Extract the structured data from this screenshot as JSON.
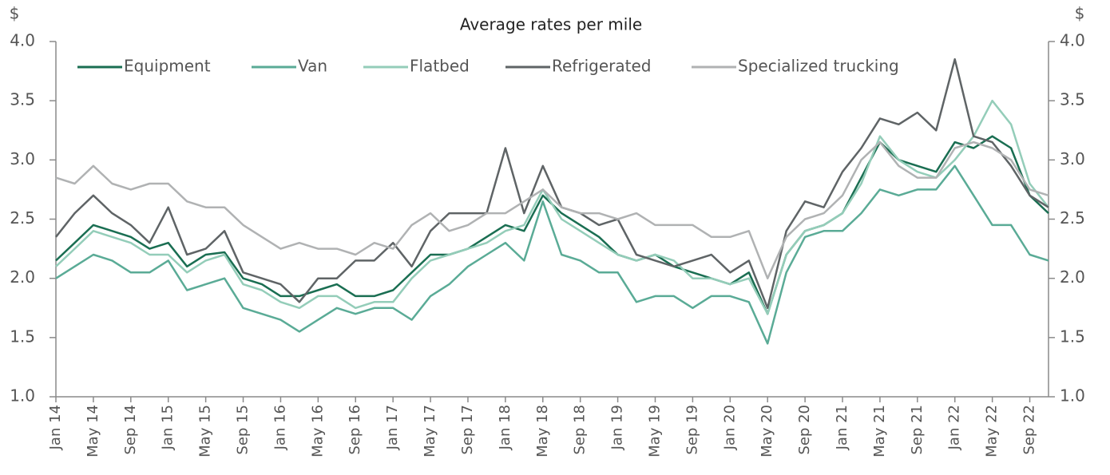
{
  "chart_data": {
    "type": "line",
    "title": "Average rates per mile",
    "y_label": "$",
    "y2_label": "$",
    "categories": [
      "Jan 14",
      null,
      "May 14",
      null,
      "Sep 14",
      null,
      "Jan 15",
      null,
      "May 15",
      null,
      "Sep 15",
      null,
      "Jan 16",
      null,
      "May 16",
      null,
      "Sep 16",
      null,
      "Jan 17",
      null,
      "May 17",
      null,
      "Sep 17",
      null,
      "Jan 18",
      null,
      "May 18",
      null,
      "Sep 18",
      null,
      "Jan 19",
      null,
      "May 19",
      null,
      "Sep 19",
      null,
      "Jan 20",
      null,
      "May 20",
      null,
      "Sep 20",
      null,
      "Jan 21",
      null,
      "May 21",
      null,
      "Sep 21",
      null,
      "Jan 22",
      null,
      "May 22",
      null,
      "Sep 22",
      null
    ],
    "series": [
      {
        "name": "Equipment",
        "color": "#1a6e52",
        "values": [
          2.15,
          2.3,
          2.45,
          2.4,
          2.35,
          2.25,
          2.3,
          2.1,
          2.2,
          2.22,
          2.0,
          1.95,
          1.85,
          1.85,
          1.9,
          1.95,
          1.85,
          1.85,
          1.9,
          2.05,
          2.2,
          2.2,
          2.25,
          2.35,
          2.45,
          2.4,
          2.7,
          2.55,
          2.45,
          2.35,
          2.2,
          2.15,
          2.2,
          2.1,
          2.05,
          2.0,
          1.95,
          2.05,
          1.7,
          2.2,
          2.4,
          2.45,
          2.55,
          2.85,
          3.15,
          3.0,
          2.95,
          2.9,
          3.15,
          3.1,
          3.2,
          3.1,
          2.7,
          2.55
        ]
      },
      {
        "name": "Van",
        "color": "#5aab96",
        "values": [
          2.0,
          2.1,
          2.2,
          2.15,
          2.05,
          2.05,
          2.15,
          1.9,
          1.95,
          2.0,
          1.75,
          1.7,
          1.65,
          1.55,
          1.65,
          1.75,
          1.7,
          1.75,
          1.75,
          1.65,
          1.85,
          1.95,
          2.1,
          2.2,
          2.3,
          2.15,
          2.65,
          2.2,
          2.15,
          2.05,
          2.05,
          1.8,
          1.85,
          1.85,
          1.75,
          1.85,
          1.85,
          1.8,
          1.45,
          2.05,
          2.35,
          2.4,
          2.4,
          2.55,
          2.75,
          2.7,
          2.75,
          2.75,
          2.95,
          2.7,
          2.45,
          2.45,
          2.2,
          2.15
        ]
      },
      {
        "name": "Flatbed",
        "color": "#94cdb9",
        "values": [
          2.1,
          2.25,
          2.4,
          2.35,
          2.3,
          2.2,
          2.2,
          2.05,
          2.15,
          2.2,
          1.95,
          1.9,
          1.8,
          1.75,
          1.85,
          1.85,
          1.75,
          1.8,
          1.8,
          2.0,
          2.15,
          2.2,
          2.25,
          2.3,
          2.4,
          2.45,
          2.75,
          2.5,
          2.4,
          2.3,
          2.2,
          2.15,
          2.2,
          2.15,
          2.0,
          2.0,
          1.95,
          2.0,
          1.7,
          2.2,
          2.4,
          2.45,
          2.55,
          2.8,
          3.2,
          3.0,
          2.9,
          2.85,
          3.0,
          3.2,
          3.5,
          3.3,
          2.8,
          2.6
        ]
      },
      {
        "name": "Refrigerated",
        "color": "#5f6466",
        "values": [
          2.35,
          2.55,
          2.7,
          2.55,
          2.45,
          2.3,
          2.6,
          2.2,
          2.25,
          2.4,
          2.05,
          2.0,
          1.95,
          1.8,
          2.0,
          2.0,
          2.15,
          2.15,
          2.3,
          2.1,
          2.4,
          2.55,
          2.55,
          2.55,
          3.1,
          2.55,
          2.95,
          2.6,
          2.55,
          2.45,
          2.5,
          2.2,
          2.15,
          2.1,
          2.15,
          2.2,
          2.05,
          2.15,
          1.75,
          2.4,
          2.65,
          2.6,
          2.9,
          3.1,
          3.35,
          3.3,
          3.4,
          3.25,
          3.85,
          3.2,
          3.15,
          2.95,
          2.7,
          2.6
        ]
      },
      {
        "name": "Specialized trucking",
        "color": "#b0b2b3",
        "values": [
          2.85,
          2.8,
          2.95,
          2.8,
          2.75,
          2.8,
          2.8,
          2.65,
          2.6,
          2.6,
          2.45,
          2.35,
          2.25,
          2.3,
          2.25,
          2.25,
          2.2,
          2.3,
          2.25,
          2.45,
          2.55,
          2.4,
          2.45,
          2.55,
          2.55,
          2.65,
          2.75,
          2.6,
          2.55,
          2.55,
          2.5,
          2.55,
          2.45,
          2.45,
          2.45,
          2.35,
          2.35,
          2.4,
          2.0,
          2.35,
          2.5,
          2.55,
          2.7,
          3.0,
          3.15,
          2.95,
          2.85,
          2.85,
          3.1,
          3.15,
          3.1,
          3.0,
          2.75,
          2.7
        ]
      }
    ],
    "ylim": [
      1,
      4
    ],
    "yticks": [
      {
        "value": 1,
        "label": "1.0"
      },
      1.5,
      {
        "value": 2,
        "label": "2.0"
      },
      2.5,
      {
        "value": 3,
        "label": "3.0"
      },
      3.5,
      {
        "value": 4,
        "label": "4.0"
      }
    ],
    "y2lim": [
      1,
      4
    ],
    "y2ticks": [
      {
        "value": 1,
        "label": "1.0"
      },
      1.5,
      {
        "value": 2,
        "label": "2.0"
      },
      2.5,
      {
        "value": 3,
        "label": "3.0"
      },
      3.5,
      {
        "value": 4,
        "label": "4.0"
      }
    ],
    "grid": false,
    "legend": "top"
  }
}
